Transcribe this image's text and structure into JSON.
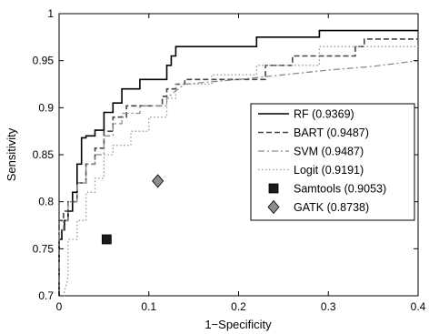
{
  "chart_data": {
    "type": "line",
    "title": "",
    "xlabel": "1−Specificity",
    "ylabel": "Sensitivity",
    "xlim": [
      0,
      0.4
    ],
    "ylim": [
      0.7,
      1
    ],
    "xticks": [
      "0",
      "0.1",
      "0.2",
      "0.3",
      "0.4"
    ],
    "yticks": [
      "0.7",
      "0.75",
      "0.8",
      "0.85",
      "0.9",
      "0.95",
      "1"
    ],
    "grid": false,
    "legend_position": "right",
    "series": [
      {
        "name": "RF (0.9369)",
        "style": "solid",
        "color": "#000000",
        "x": [
          0,
          0,
          0.003,
          0.003,
          0.006,
          0.006,
          0.01,
          0.01,
          0.015,
          0.015,
          0.02,
          0.02,
          0.025,
          0.025,
          0.03,
          0.03,
          0.04,
          0.04,
          0.05,
          0.05,
          0.06,
          0.06,
          0.07,
          0.07,
          0.08,
          0.08,
          0.09,
          0.09,
          0.12,
          0.12,
          0.125,
          0.125,
          0.13,
          0.13,
          0.22,
          0.22,
          0.29,
          0.29,
          0.4
        ],
        "y": [
          0.7,
          0.76,
          0.76,
          0.77,
          0.77,
          0.78,
          0.78,
          0.79,
          0.79,
          0.81,
          0.81,
          0.84,
          0.84,
          0.868,
          0.868,
          0.87,
          0.87,
          0.876,
          0.876,
          0.895,
          0.895,
          0.905,
          0.905,
          0.92,
          0.92,
          0.92,
          0.92,
          0.93,
          0.93,
          0.945,
          0.945,
          0.955,
          0.955,
          0.965,
          0.965,
          0.975,
          0.975,
          0.982,
          0.982
        ]
      },
      {
        "name": "BART (0.9487)",
        "style": "dashed",
        "color": "#444444",
        "x": [
          0,
          0,
          0.005,
          0.005,
          0.01,
          0.01,
          0.02,
          0.02,
          0.03,
          0.03,
          0.04,
          0.04,
          0.05,
          0.05,
          0.06,
          0.06,
          0.075,
          0.075,
          0.1,
          0.1,
          0.115,
          0.115,
          0.12,
          0.12,
          0.13,
          0.13,
          0.14,
          0.14,
          0.23,
          0.23,
          0.26,
          0.26,
          0.33,
          0.33,
          0.34,
          0.34,
          0.4
        ],
        "y": [
          0.7,
          0.78,
          0.78,
          0.79,
          0.79,
          0.8,
          0.8,
          0.82,
          0.82,
          0.84,
          0.84,
          0.857,
          0.857,
          0.875,
          0.875,
          0.89,
          0.89,
          0.902,
          0.902,
          0.902,
          0.902,
          0.912,
          0.912,
          0.92,
          0.92,
          0.925,
          0.925,
          0.93,
          0.93,
          0.945,
          0.945,
          0.955,
          0.955,
          0.965,
          0.965,
          0.973,
          0.973
        ]
      },
      {
        "name": "SVM (0.9487)",
        "style": "dashdot",
        "color": "#8c8c8c",
        "x": [
          0,
          0,
          0.005,
          0.005,
          0.01,
          0.01,
          0.02,
          0.02,
          0.03,
          0.03,
          0.04,
          0.04,
          0.05,
          0.05,
          0.06,
          0.06,
          0.07,
          0.07,
          0.09,
          0.09,
          0.12,
          0.12,
          0.13,
          0.14,
          0.14,
          0.2,
          0.25,
          0.3,
          0.35,
          0.4
        ],
        "y": [
          0.7,
          0.77,
          0.77,
          0.78,
          0.78,
          0.8,
          0.8,
          0.82,
          0.82,
          0.84,
          0.84,
          0.85,
          0.85,
          0.87,
          0.87,
          0.883,
          0.883,
          0.894,
          0.894,
          0.902,
          0.902,
          0.91,
          0.918,
          0.925,
          0.925,
          0.93,
          0.935,
          0.94,
          0.944,
          0.95
        ]
      },
      {
        "name": "Logit (0.9191)",
        "style": "dotted",
        "color": "#9a9a9a",
        "x": [
          0,
          0.005,
          0.01,
          0.01,
          0.02,
          0.02,
          0.03,
          0.03,
          0.04,
          0.04,
          0.05,
          0.05,
          0.06,
          0.06,
          0.08,
          0.08,
          0.1,
          0.1,
          0.12,
          0.12,
          0.13,
          0.13,
          0.17,
          0.17,
          0.22,
          0.22,
          0.29,
          0.29,
          0.4
        ],
        "y": [
          0.7,
          0.7,
          0.72,
          0.76,
          0.76,
          0.78,
          0.78,
          0.81,
          0.81,
          0.825,
          0.825,
          0.85,
          0.85,
          0.86,
          0.86,
          0.875,
          0.875,
          0.89,
          0.89,
          0.91,
          0.91,
          0.925,
          0.925,
          0.935,
          0.935,
          0.945,
          0.945,
          0.965,
          0.965
        ]
      }
    ],
    "points": [
      {
        "name": "Samtools (0.9053)",
        "marker": "square",
        "color": "#1a1a1a",
        "x": 0.053,
        "y": 0.76
      },
      {
        "name": "GATK (0.8738)",
        "marker": "diamond",
        "color": "#8c8c8c",
        "x": 0.11,
        "y": 0.822
      }
    ]
  }
}
